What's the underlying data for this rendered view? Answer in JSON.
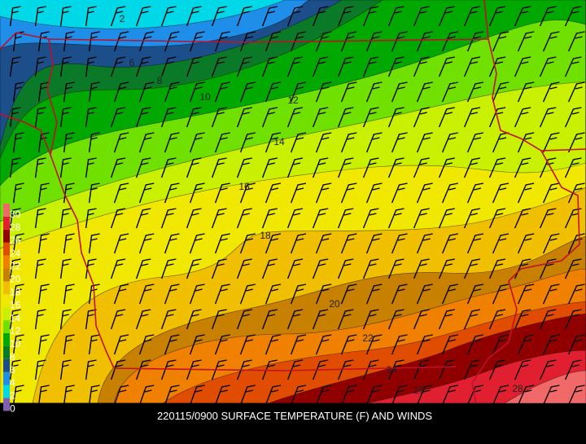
{
  "caption": "220115/0900 SURFACE TEMPERATURE (F) AND WINDS",
  "legend": [
    {
      "value": 0,
      "color": "#8060b0"
    },
    {
      "value": 2,
      "color": "#00d8e8"
    },
    {
      "value": 4,
      "color": "#1e8ee8"
    },
    {
      "value": 6,
      "color": "#1c4e8a"
    },
    {
      "value": 8,
      "color": "#0a7a28"
    },
    {
      "value": 10,
      "color": "#00a800"
    },
    {
      "value": 12,
      "color": "#70e000"
    },
    {
      "value": 14,
      "color": "#c8f000"
    },
    {
      "value": 16,
      "color": "#f0e800"
    },
    {
      "value": 18,
      "color": "#f0c000"
    },
    {
      "value": 20,
      "color": "#c88000"
    },
    {
      "value": 22,
      "color": "#f08000"
    },
    {
      "value": 24,
      "color": "#e04c00"
    },
    {
      "value": 26,
      "color": "#900000"
    },
    {
      "value": 28,
      "color": "#e02030"
    },
    {
      "value": 30,
      "color": "#f06868"
    }
  ],
  "contour_labels": [
    "2",
    "6",
    "8",
    "10",
    "12",
    "14",
    "16",
    "18",
    "20",
    "22",
    "24",
    "26",
    "28"
  ]
}
